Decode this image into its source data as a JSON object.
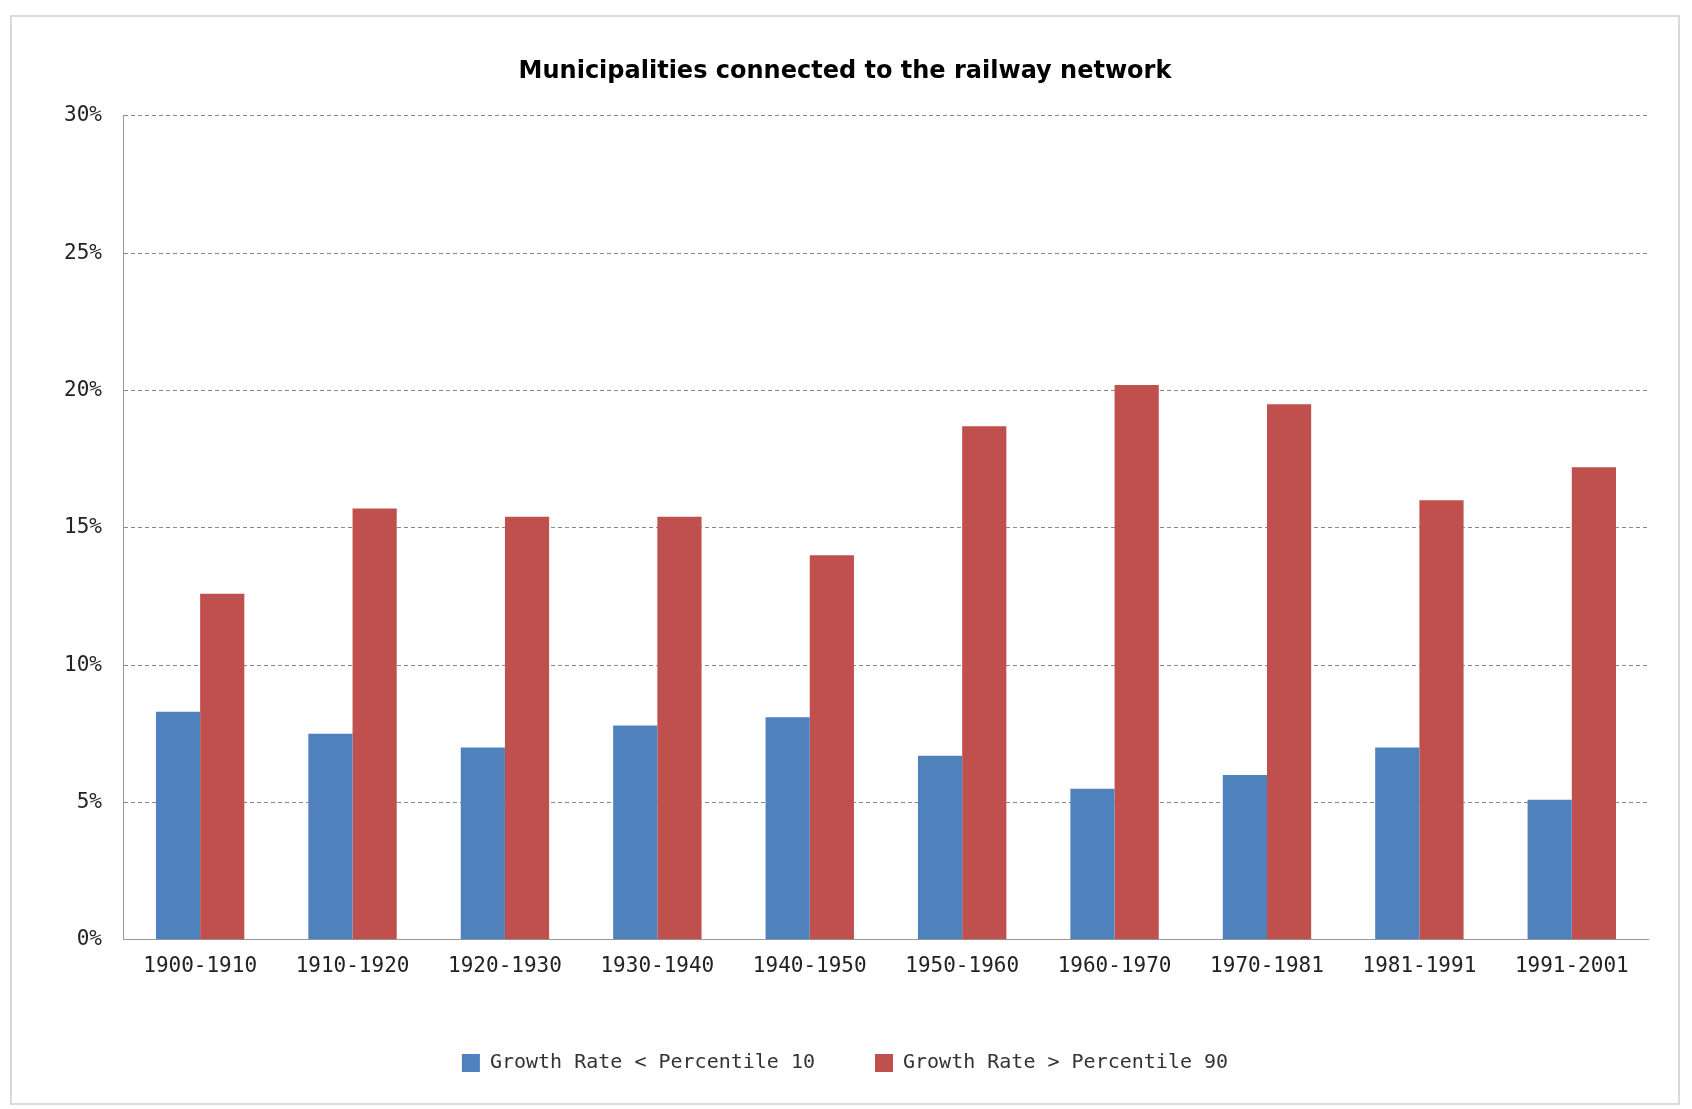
{
  "chart_data": {
    "type": "bar",
    "title": "Municipalities connected to the railway network",
    "categories": [
      "1900-1910",
      "1910-1920",
      "1920-1930",
      "1930-1940",
      "1940-1950",
      "1950-1960",
      "1960-1970",
      "1970-1981",
      "1981-1991",
      "1991-2001"
    ],
    "series": [
      {
        "name": "Growth Rate < Percentile 10",
        "color": "#4f81bd",
        "values": [
          8.3,
          7.5,
          7.0,
          7.8,
          8.1,
          6.7,
          5.5,
          6.0,
          7.0,
          5.1
        ]
      },
      {
        "name": "Growth Rate > Percentile 90",
        "color": "#c0504d",
        "values": [
          12.6,
          15.7,
          15.4,
          15.4,
          14.0,
          18.7,
          20.2,
          19.5,
          16.0,
          17.2
        ]
      }
    ],
    "ylim": [
      0,
      30
    ],
    "yticks": [
      {
        "value": 0,
        "label": "0%"
      },
      {
        "value": 5,
        "label": "5%"
      },
      {
        "value": 10,
        "label": "10%"
      },
      {
        "value": 15,
        "label": "15%"
      },
      {
        "value": 20,
        "label": "20%"
      },
      {
        "value": 25,
        "label": "25%"
      },
      {
        "value": 30,
        "label": "30%"
      }
    ],
    "grid": "y",
    "legend": "bottom"
  }
}
